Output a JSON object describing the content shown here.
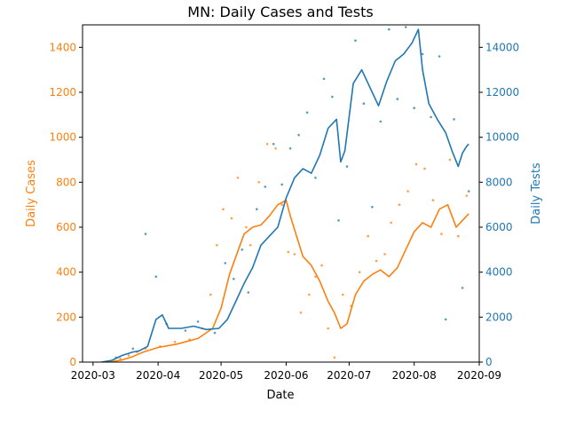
{
  "chart_data": {
    "type": "line",
    "title": "MN: Daily Cases and Tests",
    "xlabel": "Date",
    "ylabel_left": "Daily Cases",
    "ylabel_right": "Daily Tests",
    "x_ticks": [
      "2020-03",
      "2020-04",
      "2020-05",
      "2020-06",
      "2020-07",
      "2020-08",
      "2020-09"
    ],
    "y_left_ticks": [
      0,
      200,
      400,
      600,
      800,
      1000,
      1200,
      1400
    ],
    "y_right_ticks": [
      0,
      2000,
      4000,
      6000,
      8000,
      10000,
      12000,
      14000
    ],
    "x_range": [
      "2020-02-25",
      "2020-09-01"
    ],
    "ylim_left": [
      0,
      1500
    ],
    "ylim_right": [
      0,
      15000
    ],
    "grid": false,
    "colors": {
      "cases": "#ff7f0e",
      "tests": "#1f77b4"
    },
    "series": [
      {
        "axis": "left",
        "color": "#ff7f0e",
        "style": "line",
        "points": [
          [
            "2020-03-05",
            0
          ],
          [
            "2020-03-10",
            2
          ],
          [
            "2020-03-15",
            10
          ],
          [
            "2020-03-20",
            25
          ],
          [
            "2020-03-25",
            45
          ],
          [
            "2020-04-01",
            65
          ],
          [
            "2020-04-10",
            80
          ],
          [
            "2020-04-20",
            105
          ],
          [
            "2020-04-27",
            150
          ],
          [
            "2020-05-01",
            240
          ],
          [
            "2020-05-05",
            390
          ],
          [
            "2020-05-10",
            520
          ],
          [
            "2020-05-12",
            570
          ],
          [
            "2020-05-16",
            600
          ],
          [
            "2020-05-20",
            610
          ],
          [
            "2020-05-24",
            650
          ],
          [
            "2020-05-28",
            700
          ],
          [
            "2020-06-01",
            720
          ],
          [
            "2020-06-03",
            650
          ],
          [
            "2020-06-06",
            560
          ],
          [
            "2020-06-09",
            470
          ],
          [
            "2020-06-13",
            430
          ],
          [
            "2020-06-17",
            360
          ],
          [
            "2020-06-21",
            270
          ],
          [
            "2020-06-24",
            220
          ],
          [
            "2020-06-27",
            150
          ],
          [
            "2020-06-30",
            170
          ],
          [
            "2020-07-04",
            300
          ],
          [
            "2020-07-08",
            360
          ],
          [
            "2020-07-12",
            390
          ],
          [
            "2020-07-16",
            410
          ],
          [
            "2020-07-20",
            380
          ],
          [
            "2020-07-24",
            420
          ],
          [
            "2020-07-28",
            500
          ],
          [
            "2020-08-01",
            580
          ],
          [
            "2020-08-05",
            620
          ],
          [
            "2020-08-09",
            600
          ],
          [
            "2020-08-13",
            680
          ],
          [
            "2020-08-17",
            700
          ],
          [
            "2020-08-21",
            600
          ],
          [
            "2020-08-25",
            640
          ],
          [
            "2020-08-27",
            660
          ]
        ]
      },
      {
        "axis": "right",
        "color": "#1f77b4",
        "style": "line",
        "points": [
          [
            "2020-03-05",
            0
          ],
          [
            "2020-03-10",
            80
          ],
          [
            "2020-03-15",
            300
          ],
          [
            "2020-03-20",
            450
          ],
          [
            "2020-03-23",
            500
          ],
          [
            "2020-03-27",
            700
          ],
          [
            "2020-03-31",
            1900
          ],
          [
            "2020-04-03",
            2100
          ],
          [
            "2020-04-06",
            1500
          ],
          [
            "2020-04-12",
            1500
          ],
          [
            "2020-04-18",
            1600
          ],
          [
            "2020-04-24",
            1450
          ],
          [
            "2020-04-30",
            1500
          ],
          [
            "2020-05-04",
            1900
          ],
          [
            "2020-05-08",
            2700
          ],
          [
            "2020-05-12",
            3500
          ],
          [
            "2020-05-16",
            4200
          ],
          [
            "2020-05-20",
            5200
          ],
          [
            "2020-05-24",
            5600
          ],
          [
            "2020-05-28",
            6000
          ],
          [
            "2020-06-01",
            7300
          ],
          [
            "2020-06-05",
            8200
          ],
          [
            "2020-06-09",
            8600
          ],
          [
            "2020-06-13",
            8400
          ],
          [
            "2020-06-17",
            9200
          ],
          [
            "2020-06-21",
            10400
          ],
          [
            "2020-06-25",
            10800
          ],
          [
            "2020-06-27",
            8900
          ],
          [
            "2020-06-29",
            9400
          ],
          [
            "2020-07-03",
            12400
          ],
          [
            "2020-07-07",
            13000
          ],
          [
            "2020-07-11",
            12200
          ],
          [
            "2020-07-15",
            11400
          ],
          [
            "2020-07-19",
            12500
          ],
          [
            "2020-07-23",
            13400
          ],
          [
            "2020-07-27",
            13700
          ],
          [
            "2020-07-31",
            14200
          ],
          [
            "2020-08-03",
            14800
          ],
          [
            "2020-08-05",
            13000
          ],
          [
            "2020-08-08",
            11500
          ],
          [
            "2020-08-12",
            10800
          ],
          [
            "2020-08-16",
            10200
          ],
          [
            "2020-08-19",
            9400
          ],
          [
            "2020-08-22",
            8700
          ],
          [
            "2020-08-24",
            9300
          ],
          [
            "2020-08-26",
            9600
          ],
          [
            "2020-08-27",
            9700
          ]
        ]
      },
      {
        "axis": "left",
        "color": "#ff7f0e",
        "style": "scatter",
        "points": [
          [
            "2020-03-08",
            2
          ],
          [
            "2020-03-14",
            15
          ],
          [
            "2020-03-18",
            30
          ],
          [
            "2020-03-22",
            45
          ],
          [
            "2020-03-26",
            60
          ],
          [
            "2020-04-02",
            70
          ],
          [
            "2020-04-09",
            90
          ],
          [
            "2020-04-16",
            100
          ],
          [
            "2020-04-22",
            150
          ],
          [
            "2020-04-26",
            300
          ],
          [
            "2020-04-29",
            520
          ],
          [
            "2020-05-02",
            680
          ],
          [
            "2020-05-06",
            640
          ],
          [
            "2020-05-09",
            820
          ],
          [
            "2020-05-13",
            600
          ],
          [
            "2020-05-15",
            520
          ],
          [
            "2020-05-19",
            800
          ],
          [
            "2020-05-23",
            970
          ],
          [
            "2020-05-27",
            950
          ],
          [
            "2020-05-30",
            700
          ],
          [
            "2020-06-02",
            490
          ],
          [
            "2020-06-05",
            480
          ],
          [
            "2020-06-08",
            220
          ],
          [
            "2020-06-12",
            300
          ],
          [
            "2020-06-15",
            380
          ],
          [
            "2020-06-18",
            430
          ],
          [
            "2020-06-21",
            150
          ],
          [
            "2020-06-24",
            20
          ],
          [
            "2020-06-28",
            300
          ],
          [
            "2020-07-02",
            250
          ],
          [
            "2020-07-06",
            400
          ],
          [
            "2020-07-10",
            560
          ],
          [
            "2020-07-14",
            450
          ],
          [
            "2020-07-18",
            480
          ],
          [
            "2020-07-21",
            620
          ],
          [
            "2020-07-25",
            700
          ],
          [
            "2020-07-29",
            760
          ],
          [
            "2020-08-02",
            880
          ],
          [
            "2020-08-06",
            860
          ],
          [
            "2020-08-10",
            720
          ],
          [
            "2020-08-14",
            570
          ],
          [
            "2020-08-18",
            900
          ],
          [
            "2020-08-22",
            560
          ],
          [
            "2020-08-26",
            740
          ]
        ]
      },
      {
        "axis": "right",
        "color": "#1f77b4",
        "style": "scatter",
        "points": [
          [
            "2020-03-12",
            200
          ],
          [
            "2020-03-20",
            600
          ],
          [
            "2020-03-26",
            5700
          ],
          [
            "2020-03-31",
            3800
          ],
          [
            "2020-04-05",
            1700
          ],
          [
            "2020-04-14",
            1400
          ],
          [
            "2020-04-20",
            1800
          ],
          [
            "2020-04-28",
            1300
          ],
          [
            "2020-05-03",
            4400
          ],
          [
            "2020-05-07",
            3700
          ],
          [
            "2020-05-11",
            5000
          ],
          [
            "2020-05-14",
            3100
          ],
          [
            "2020-05-18",
            6800
          ],
          [
            "2020-05-22",
            7800
          ],
          [
            "2020-05-26",
            9700
          ],
          [
            "2020-05-30",
            7900
          ],
          [
            "2020-06-03",
            9500
          ],
          [
            "2020-06-07",
            10100
          ],
          [
            "2020-06-11",
            11100
          ],
          [
            "2020-06-15",
            8200
          ],
          [
            "2020-06-19",
            12600
          ],
          [
            "2020-06-23",
            11800
          ],
          [
            "2020-06-26",
            6300
          ],
          [
            "2020-06-30",
            8700
          ],
          [
            "2020-07-04",
            14300
          ],
          [
            "2020-07-08",
            11500
          ],
          [
            "2020-07-12",
            6900
          ],
          [
            "2020-07-16",
            10700
          ],
          [
            "2020-07-20",
            14800
          ],
          [
            "2020-07-24",
            11700
          ],
          [
            "2020-07-28",
            14900
          ],
          [
            "2020-08-01",
            11300
          ],
          [
            "2020-08-05",
            13700
          ],
          [
            "2020-08-09",
            10900
          ],
          [
            "2020-08-13",
            13600
          ],
          [
            "2020-08-16",
            1900
          ],
          [
            "2020-08-20",
            10800
          ],
          [
            "2020-08-24",
            3300
          ],
          [
            "2020-08-27",
            7600
          ]
        ]
      }
    ]
  }
}
